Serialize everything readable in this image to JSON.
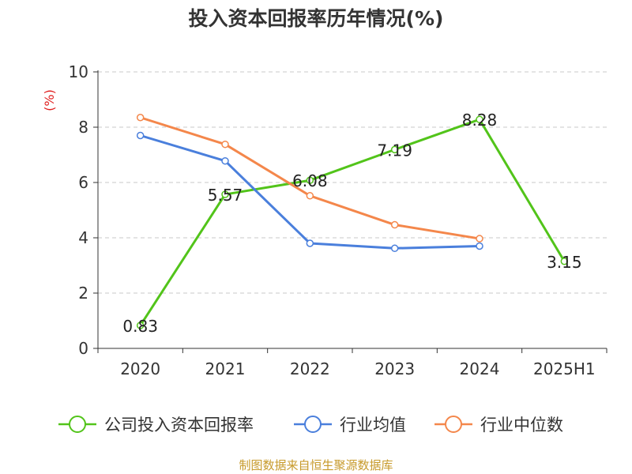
{
  "chart_data": {
    "type": "line",
    "title": "投入资本回报率历年情况(%)",
    "ylabel": "(%)",
    "xlabel": "",
    "categories": [
      "2020",
      "2021",
      "2022",
      "2023",
      "2024",
      "2025H1"
    ],
    "ylim": [
      0,
      10
    ],
    "yticks": [
      0,
      2,
      4,
      6,
      8,
      10
    ],
    "grid": "horizontal dashed",
    "legend_position": "bottom",
    "series": [
      {
        "name": "公司投入资本回报率",
        "color": "#52c41a",
        "values": [
          0.83,
          5.57,
          6.08,
          7.19,
          8.28,
          3.15
        ],
        "labels": [
          "0.83",
          "5.57",
          "6.08",
          "7.19",
          "8.28",
          "3.15"
        ]
      },
      {
        "name": "行业均值",
        "color": "#4a7fdc",
        "values": [
          7.7,
          6.78,
          3.8,
          3.62,
          3.7,
          null
        ]
      },
      {
        "name": "行业中位数",
        "color": "#f4874b",
        "values": [
          8.35,
          7.38,
          5.52,
          4.47,
          3.97,
          null
        ]
      }
    ]
  },
  "source": "制图数据来自恒生聚源数据库"
}
